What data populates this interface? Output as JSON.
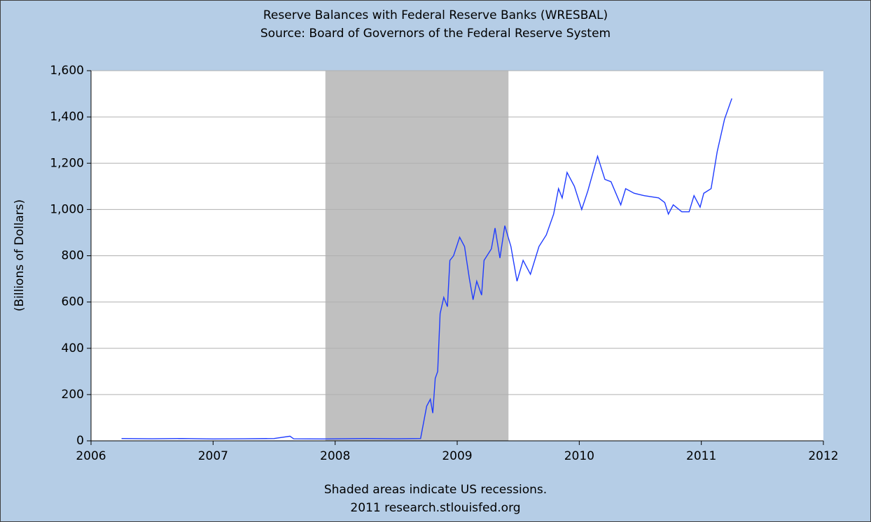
{
  "chart_data": {
    "type": "line",
    "title": "Reserve Balances with Federal Reserve Banks (WRESBAL)",
    "subtitle": "Source: Board of Governors of the Federal Reserve System",
    "ylabel": "(Billions of Dollars)",
    "notes": [
      "Shaded areas indicate US recessions.",
      "2011 research.stlouisfed.org"
    ],
    "recession": [
      2007.92,
      2009.42
    ],
    "xlim": [
      2006,
      2012
    ],
    "xticks": [
      2006,
      2007,
      2008,
      2009,
      2010,
      2011,
      2012
    ],
    "ylim": [
      0,
      1600
    ],
    "yticks": [
      0,
      200,
      400,
      600,
      800,
      {
        "value": 1000,
        "label": "1,000"
      },
      {
        "value": 1200,
        "label": "1,200"
      },
      {
        "value": 1400,
        "label": "1,400"
      },
      {
        "value": 1600,
        "label": "1,600"
      }
    ],
    "grid": true,
    "series": [
      {
        "name": "WRESBAL",
        "color": "#1f3cff",
        "x": [
          2006.25,
          2006.5,
          2006.75,
          2007.0,
          2007.25,
          2007.5,
          2007.63,
          2007.66,
          2007.9,
          2008.25,
          2008.5,
          2008.7,
          2008.75,
          2008.78,
          2008.8,
          2008.82,
          2008.84,
          2008.86,
          2008.89,
          2008.92,
          2008.94,
          2008.97,
          2009.02,
          2009.06,
          2009.1,
          2009.13,
          2009.16,
          2009.2,
          2009.22,
          2009.28,
          2009.31,
          2009.35,
          2009.39,
          2009.44,
          2009.49,
          2009.54,
          2009.6,
          2009.67,
          2009.73,
          2009.79,
          2009.83,
          2009.86,
          2009.9,
          2009.96,
          2010.02,
          2010.07,
          2010.15,
          2010.21,
          2010.26,
          2010.34,
          2010.38,
          2010.45,
          2010.53,
          2010.65,
          2010.7,
          2010.73,
          2010.77,
          2010.84,
          2010.9,
          2010.94,
          2010.99,
          2011.02,
          2011.08,
          2011.13,
          2011.19,
          2011.25
        ],
        "values": [
          10,
          9,
          10,
          8,
          9,
          10,
          20,
          9,
          8,
          10,
          9,
          10,
          150,
          180,
          120,
          270,
          300,
          550,
          620,
          580,
          780,
          800,
          880,
          840,
          700,
          610,
          690,
          630,
          780,
          830,
          920,
          790,
          930,
          840,
          690,
          780,
          720,
          840,
          890,
          980,
          1090,
          1050,
          1160,
          1100,
          1000,
          1080,
          1230,
          1130,
          1120,
          1020,
          1090,
          1070,
          1060,
          1050,
          1030,
          980,
          1020,
          990,
          990,
          1060,
          1010,
          1070,
          1090,
          1250,
          1390,
          1480
        ]
      }
    ]
  }
}
